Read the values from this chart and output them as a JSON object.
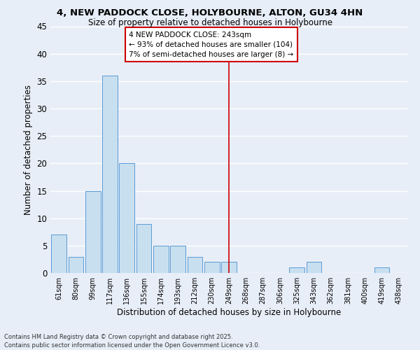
{
  "title": "4, NEW PADDOCK CLOSE, HOLYBOURNE, ALTON, GU34 4HN",
  "subtitle": "Size of property relative to detached houses in Holybourne",
  "xlabel": "Distribution of detached houses by size in Holybourne",
  "ylabel": "Number of detached properties",
  "bin_labels": [
    "61sqm",
    "80sqm",
    "99sqm",
    "117sqm",
    "136sqm",
    "155sqm",
    "174sqm",
    "193sqm",
    "212sqm",
    "230sqm",
    "249sqm",
    "268sqm",
    "287sqm",
    "306sqm",
    "325sqm",
    "343sqm",
    "362sqm",
    "381sqm",
    "400sqm",
    "419sqm",
    "438sqm"
  ],
  "bar_heights": [
    7,
    3,
    15,
    36,
    20,
    9,
    5,
    5,
    3,
    2,
    2,
    0,
    0,
    0,
    1,
    2,
    0,
    0,
    0,
    1,
    0
  ],
  "bar_color": "#c8dff0",
  "bar_edge_color": "#5b9bd5",
  "ylim": [
    0,
    45
  ],
  "yticks": [
    0,
    5,
    10,
    15,
    20,
    25,
    30,
    35,
    40,
    45
  ],
  "vline_x": 10.0,
  "vline_color": "#cc0000",
  "annotation_title": "4 NEW PADDOCK CLOSE: 243sqm",
  "annotation_line1": "← 93% of detached houses are smaller (104)",
  "annotation_line2": "7% of semi-detached houses are larger (8) →",
  "footer_line1": "Contains HM Land Registry data © Crown copyright and database right 2025.",
  "footer_line2": "Contains public sector information licensed under the Open Government Licence v3.0.",
  "background_color": "#e8eef8",
  "grid_color": "#ffffff"
}
